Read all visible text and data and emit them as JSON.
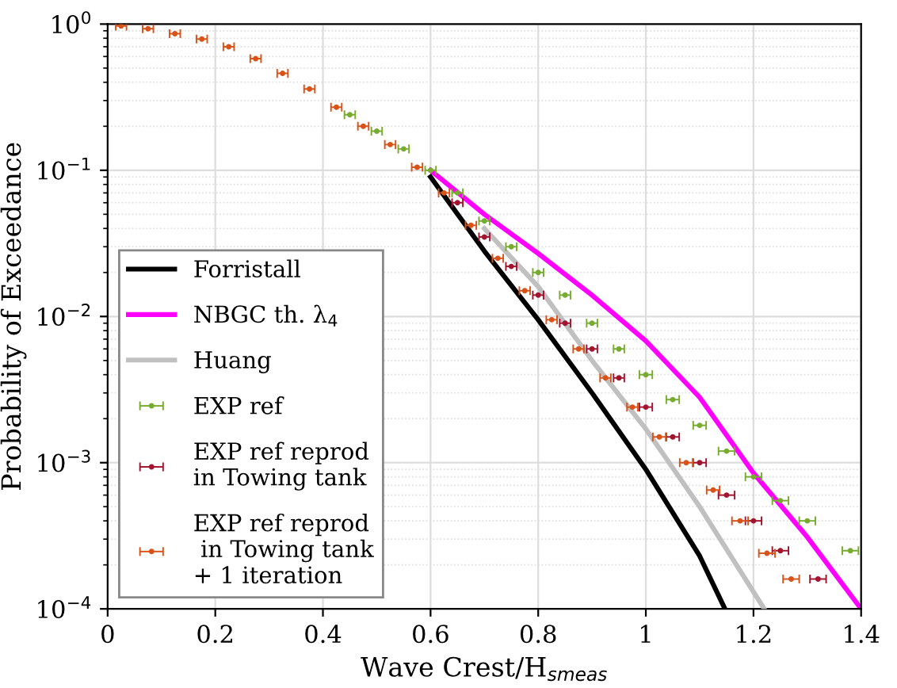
{
  "chart_data": {
    "type": "line",
    "xlabel": "Wave Crest/H$_{smeas}$",
    "ylabel": "Probability of Exceedance",
    "log": "y",
    "grid": true,
    "legend": "bottom left",
    "xlim": [
      0,
      1.4
    ],
    "xticks": [
      0,
      0.2,
      0.4,
      0.6,
      0.8,
      1,
      1.2,
      1.4
    ],
    "ylim": [
      0.0001,
      1
    ],
    "yticks": [
      {
        "value": 0.0001,
        "label": "10$^{−4}$"
      },
      {
        "value": 0.001,
        "label": "10$^{−3}$"
      },
      {
        "value": 0.01,
        "label": "10$^{−2}$"
      },
      {
        "value": 0.1,
        "label": "10$^{−1}$"
      },
      {
        "value": 1,
        "label": "10$^{0}$"
      }
    ],
    "series": [
      {
        "name": "Forristall",
        "color": "#000000",
        "x": [
          0.6,
          0.7,
          0.8,
          0.9,
          1.0,
          1.1,
          1.147
        ],
        "values": [
          0.09,
          0.028,
          0.0095,
          0.003,
          0.0009,
          0.00023,
          0.0001
        ]
      },
      {
        "name": "NBGC th. λ$_{4}$",
        "color": "#ff00ff",
        "x": [
          0.6,
          0.7,
          0.8,
          0.9,
          1.0,
          1.1,
          1.2,
          1.3,
          1.4
        ],
        "values": [
          0.1,
          0.05,
          0.027,
          0.014,
          0.0068,
          0.0028,
          0.00085,
          0.00031,
          0.0001
        ]
      },
      {
        "name": "Huang",
        "color": "#c0c0c0",
        "x": [
          0.7,
          0.8,
          0.9,
          1.0,
          1.1,
          1.22
        ],
        "values": [
          0.04,
          0.016,
          0.005,
          0.0017,
          0.0005,
          0.0001
        ]
      },
      {
        "name": "EXP ref",
        "type": "scatter",
        "color": "#77ac30",
        "x": [
          0.45,
          0.5,
          0.55,
          0.6,
          0.65,
          0.7,
          0.75,
          0.8,
          0.85,
          0.9,
          0.95,
          1.0,
          1.05,
          1.1,
          1.15,
          1.2,
          1.25,
          1.3,
          1.38
        ],
        "values": [
          0.24,
          0.185,
          0.14,
          0.1,
          0.07,
          0.045,
          0.03,
          0.02,
          0.014,
          0.009,
          0.006,
          0.004,
          0.0027,
          0.0018,
          0.0012,
          0.0008,
          0.00055,
          0.0004,
          0.00025
        ],
        "xerrors": [
          0.01,
          0.01,
          0.01,
          0.01,
          0.01,
          0.01,
          0.01,
          0.01,
          0.01,
          0.01,
          0.01,
          0.012,
          0.012,
          0.012,
          0.015,
          0.015,
          0.015,
          0.015,
          0.015
        ]
      },
      {
        "name": "EXP ref reprod\nin Towing tank",
        "type": "scatter",
        "color": "#a2142f",
        "x": [
          0.65,
          0.7,
          0.75,
          0.8,
          0.85,
          0.9,
          0.95,
          1.0,
          1.05,
          1.1,
          1.15,
          1.2,
          1.25,
          1.32
        ],
        "values": [
          0.06,
          0.035,
          0.022,
          0.014,
          0.009,
          0.006,
          0.0038,
          0.0024,
          0.0015,
          0.001,
          0.0006,
          0.0004,
          0.00025,
          0.00016
        ],
        "xerrors": [
          0.01,
          0.01,
          0.01,
          0.01,
          0.01,
          0.01,
          0.01,
          0.012,
          0.012,
          0.012,
          0.015,
          0.015,
          0.015,
          0.015
        ]
      },
      {
        "name": "EXP ref reprod\n in Towing tank\n+ 1 iteration",
        "type": "scatter",
        "color": "#d95319",
        "x": [
          0.025,
          0.075,
          0.125,
          0.175,
          0.225,
          0.275,
          0.325,
          0.375,
          0.425,
          0.475,
          0.525,
          0.575,
          0.625,
          0.675,
          0.725,
          0.775,
          0.825,
          0.875,
          0.925,
          0.975,
          1.025,
          1.075,
          1.125,
          1.175,
          1.225,
          1.27
        ],
        "values": [
          0.97,
          0.93,
          0.86,
          0.79,
          0.7,
          0.58,
          0.46,
          0.36,
          0.27,
          0.2,
          0.15,
          0.105,
          0.07,
          0.042,
          0.025,
          0.015,
          0.0095,
          0.006,
          0.0038,
          0.0024,
          0.0015,
          0.001,
          0.00065,
          0.0004,
          0.00024,
          0.00016
        ],
        "xerrors": [
          0.01,
          0.01,
          0.01,
          0.01,
          0.01,
          0.01,
          0.01,
          0.01,
          0.01,
          0.01,
          0.01,
          0.01,
          0.01,
          0.01,
          0.01,
          0.01,
          0.01,
          0.01,
          0.01,
          0.01,
          0.012,
          0.012,
          0.012,
          0.015,
          0.015,
          0.015
        ]
      }
    ]
  }
}
